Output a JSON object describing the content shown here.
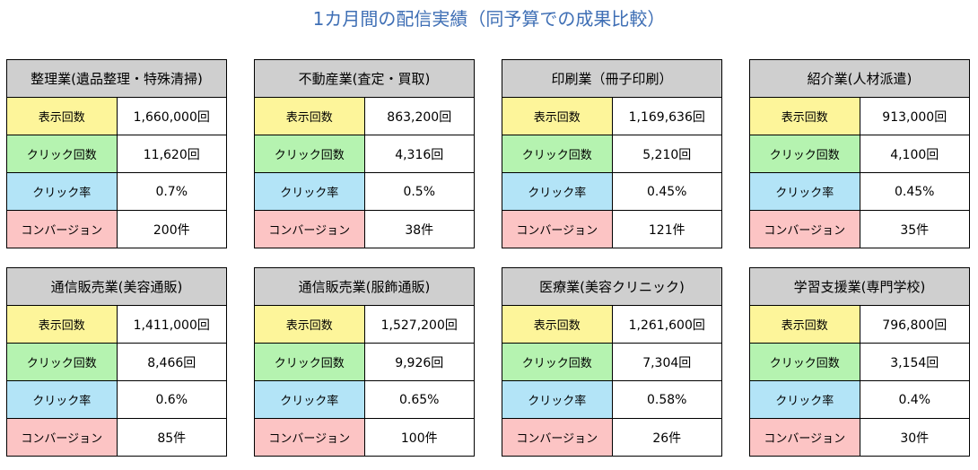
{
  "title": "1カ月間の配信実績（同予算での成果比較）",
  "row_labels": [
    "表示回数",
    "クリック回数",
    "クリック率",
    "コンバージョン"
  ],
  "row_colors": [
    "#fdf59a",
    "#b5f3b0",
    "#b3e4f7",
    "#fcc4c4"
  ],
  "panels": [
    {
      "name": "整理業(遺品整理・特殊清掃)",
      "values": [
        "1,660,000回",
        "11,620回",
        "0.7%",
        "200件"
      ]
    },
    {
      "name": "不動産業(査定・買取)",
      "values": [
        "863,200回",
        "4,316回",
        "0.5%",
        "38件"
      ]
    },
    {
      "name": "印刷業（冊子印刷）",
      "values": [
        "1,169,636回",
        "5,210回",
        "0.45%",
        "121件"
      ]
    },
    {
      "name": "紹介業(人材派遣)",
      "values": [
        "913,000回",
        "4,100回",
        "0.45%",
        "35件"
      ]
    },
    {
      "name": "通信販売業(美容通販)",
      "values": [
        "1,411,000回",
        "8,466回",
        "0.6%",
        "85件"
      ]
    },
    {
      "name": "通信販売業(服飾通販)",
      "values": [
        "1,527,200回",
        "9,926回",
        "0.65%",
        "100件"
      ]
    },
    {
      "name": "医療業(美容クリニック)",
      "values": [
        "1,261,600回",
        "7,304回",
        "0.58%",
        "26件"
      ]
    },
    {
      "name": "学習支援業(専門学校)",
      "values": [
        "796,800回",
        "3,154回",
        "0.4%",
        "30件"
      ]
    }
  ]
}
